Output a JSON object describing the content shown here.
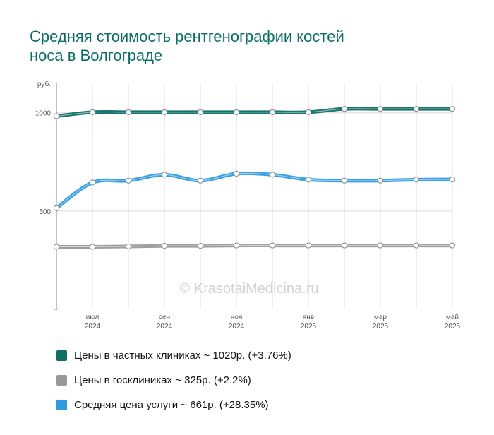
{
  "title_lines": [
    "Средняя стоимость рентгенографии костей",
    "носа в Волгограде"
  ],
  "watermark": "© KrasotaiMedicina.ru",
  "y_unit": "руб.",
  "legend": [
    {
      "label": "Цены в частных клиниках ~ 1020р. (+3.76%)",
      "color": "#0d6f66"
    },
    {
      "label": "Цены в госклиниках ~ 325р. (+2.2%)",
      "color": "#999999"
    },
    {
      "label": "Средняя цена услуги ~ 661р. (+28.35%)",
      "color": "#2b9be0"
    }
  ],
  "chart_data": {
    "type": "line",
    "ylim": [
      0,
      1150
    ],
    "y_ticks": [
      500,
      1000
    ],
    "x_ticks": [
      {
        "month": "июл",
        "year": "2024"
      },
      {
        "month": "сен",
        "year": "2024"
      },
      {
        "month": "ноя",
        "year": "2024"
      },
      {
        "month": "янв",
        "year": "2025"
      },
      {
        "month": "мар",
        "year": "2025"
      },
      {
        "month": "май",
        "year": "2025"
      }
    ],
    "x": [
      "2024-06",
      "2024-07",
      "2024-08",
      "2024-09",
      "2024-10",
      "2024-11",
      "2024-12",
      "2025-01",
      "2025-02",
      "2025-03",
      "2025-04",
      "2025-05"
    ],
    "series": [
      {
        "values": [
          983,
          1003,
          1003,
          1003,
          1003,
          1003,
          1003,
          1003,
          1020,
          1020,
          1020,
          1020
        ],
        "color": "#0d6f66"
      },
      {
        "values": [
          318,
          318,
          320,
          323,
          323,
          325,
          325,
          325,
          325,
          325,
          325,
          325
        ],
        "color": "#999999"
      },
      {
        "values": [
          515,
          645,
          655,
          685,
          655,
          690,
          685,
          660,
          655,
          655,
          660,
          661
        ],
        "color": "#2b9be0"
      }
    ],
    "grid": true
  }
}
